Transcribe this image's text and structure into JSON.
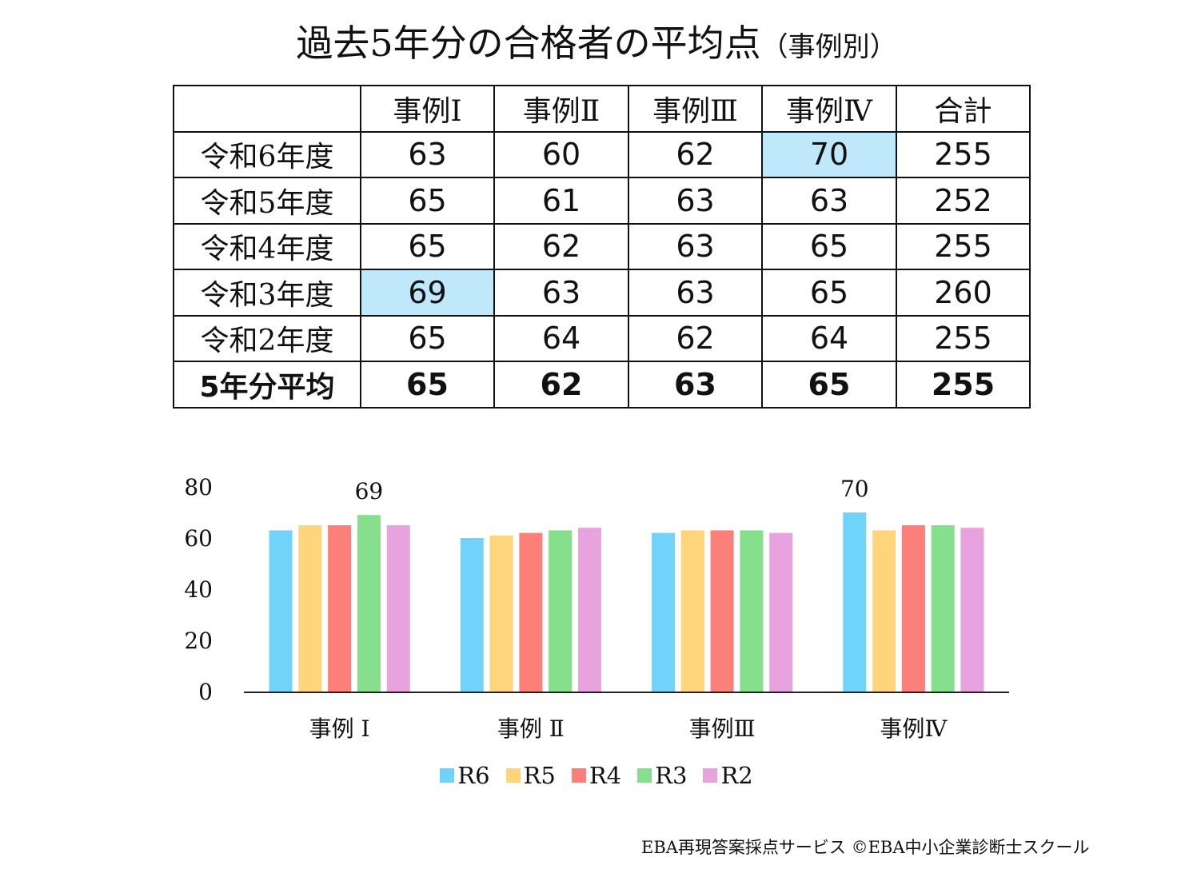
{
  "title": {
    "main": "過去5年分の合格者の平均点",
    "sub": "（事例別）"
  },
  "table": {
    "headers": [
      "",
      "事例Ⅰ",
      "事例Ⅱ",
      "事例Ⅲ",
      "事例Ⅳ",
      "合計"
    ],
    "highlight_color": "#bfe9fb",
    "rows": [
      {
        "label": "令和6年度",
        "values": [
          "63",
          "60",
          "62",
          "70",
          "255"
        ],
        "highlight": [
          false,
          false,
          false,
          true,
          false
        ]
      },
      {
        "label": "令和5年度",
        "values": [
          "65",
          "61",
          "63",
          "63",
          "252"
        ],
        "highlight": [
          false,
          false,
          false,
          false,
          false
        ]
      },
      {
        "label": "令和4年度",
        "values": [
          "65",
          "62",
          "63",
          "65",
          "255"
        ],
        "highlight": [
          false,
          false,
          false,
          false,
          false
        ]
      },
      {
        "label": "令和3年度",
        "values": [
          "69",
          "63",
          "63",
          "65",
          "260"
        ],
        "highlight": [
          true,
          false,
          false,
          false,
          false
        ]
      },
      {
        "label": "令和2年度",
        "values": [
          "65",
          "64",
          "62",
          "64",
          "255"
        ],
        "highlight": [
          false,
          false,
          false,
          false,
          false
        ]
      }
    ],
    "average_row": {
      "label": "5年分平均",
      "values": [
        "65",
        "62",
        "63",
        "65",
        "255"
      ]
    }
  },
  "chart_data": {
    "type": "bar",
    "categories": [
      "事例 Ⅰ",
      "事例 Ⅱ",
      "事例Ⅲ",
      "事例Ⅳ"
    ],
    "series": [
      {
        "name": "R6",
        "values": [
          63,
          60,
          62,
          70
        ],
        "color": "#70d4fa"
      },
      {
        "name": "R5",
        "values": [
          65,
          61,
          63,
          63
        ],
        "color": "#fed57b"
      },
      {
        "name": "R4",
        "values": [
          65,
          62,
          63,
          65
        ],
        "color": "#fd7f79"
      },
      {
        "name": "R3",
        "values": [
          69,
          63,
          63,
          65
        ],
        "color": "#86df8c"
      },
      {
        "name": "R2",
        "values": [
          65,
          64,
          62,
          64
        ],
        "color": "#e8a3de"
      }
    ],
    "ylim": [
      0,
      80
    ],
    "yticks": [
      0,
      20,
      40,
      60,
      80
    ],
    "data_labels": [
      {
        "series": "R3",
        "category": "事例 Ⅰ",
        "text": "69"
      },
      {
        "series": "R6",
        "category": "事例Ⅳ",
        "text": "70"
      }
    ],
    "legend": "bottom",
    "grid": false
  },
  "footer": "EBA再現答案採点サービス ©EBA中小企業診断士スクール"
}
